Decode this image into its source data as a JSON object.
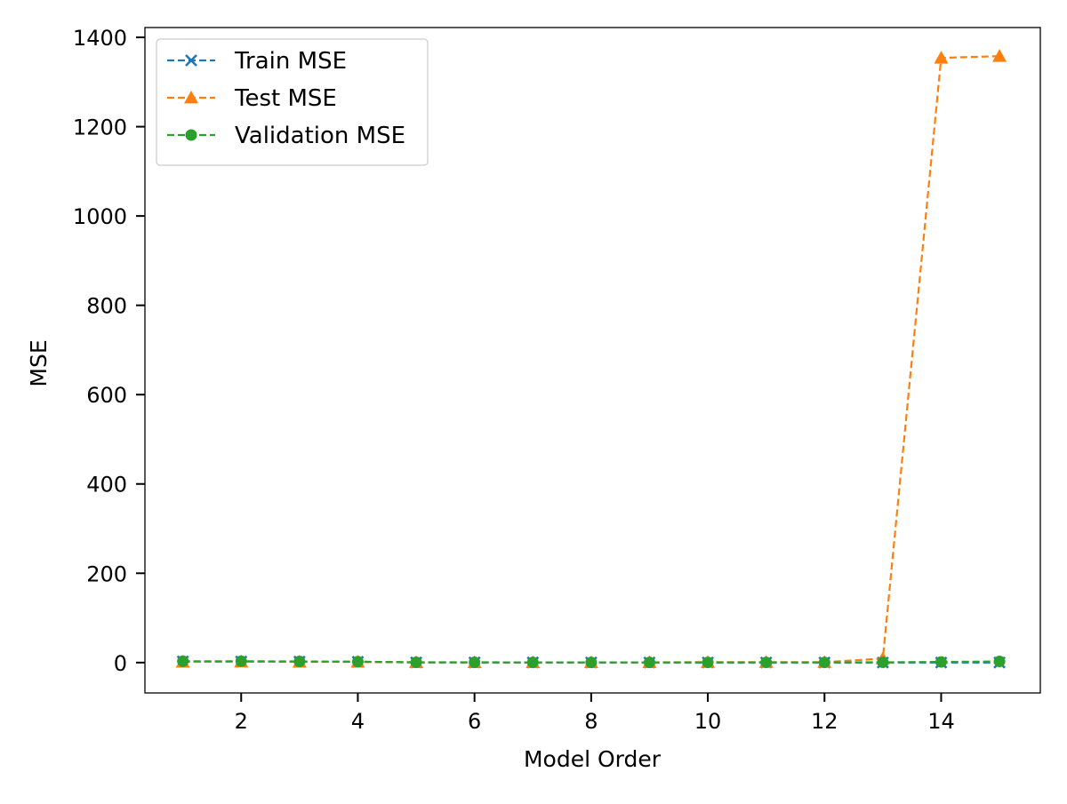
{
  "chart_data": {
    "type": "line",
    "title": "",
    "xlabel": "Model Order",
    "ylabel": "MSE",
    "xlim": [
      0.35,
      15.7
    ],
    "ylim": [
      -68,
      1422
    ],
    "xticks": [
      2,
      4,
      6,
      8,
      10,
      12,
      14
    ],
    "yticks": [
      0,
      200,
      400,
      600,
      800,
      1000,
      1200,
      1400
    ],
    "grid": false,
    "legend_position": "upper left",
    "x": [
      1,
      2,
      3,
      4,
      5,
      6,
      7,
      8,
      9,
      10,
      11,
      12,
      13,
      14,
      15
    ],
    "series": [
      {
        "name": "Train MSE",
        "color": "#1f77b4",
        "marker": "x",
        "linestyle": "dashed",
        "values": [
          2.5,
          2.3,
          2.0,
          1.8,
          0.3,
          0.2,
          0.2,
          0.1,
          0.1,
          0.1,
          0.1,
          0.1,
          0.1,
          0.1,
          0.1
        ]
      },
      {
        "name": "Test MSE",
        "color": "#ff7f0e",
        "marker": "triangle",
        "linestyle": "dashed",
        "values": [
          1.5,
          2.0,
          1.5,
          1.5,
          0.5,
          0.5,
          0.5,
          0.5,
          0.5,
          1.0,
          1.0,
          1.0,
          9.0,
          1354,
          1358
        ]
      },
      {
        "name": "Validation MSE",
        "color": "#2ca02c",
        "marker": "circle",
        "linestyle": "dashed",
        "values": [
          3.0,
          3.0,
          2.5,
          2.0,
          0.6,
          0.6,
          0.5,
          0.5,
          0.5,
          0.5,
          0.5,
          0.5,
          0.6,
          1.5,
          2.5
        ]
      }
    ]
  }
}
